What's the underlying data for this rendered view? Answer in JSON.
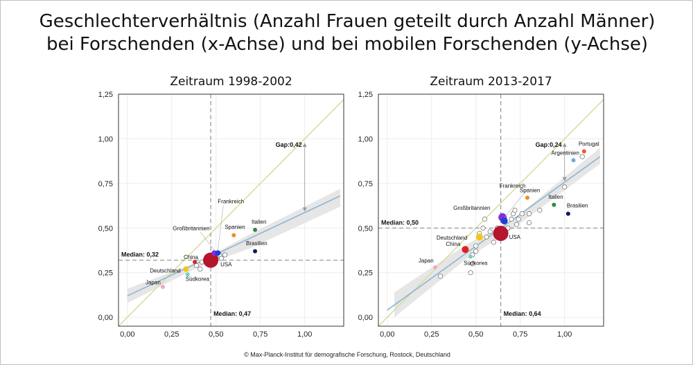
{
  "title_line1": "Geschlechterverhältnis (Anzahl Frauen geteilt durch Anzahl Männer)",
  "title_line2": "bei Forschenden (x-Achse) und bei mobilen Forschenden (y-Achse)",
  "credit": "© Max-Planck-Institut für demografische Forschung, Rostock, Deutschland",
  "colors": {
    "identity_line": "#d6dfa4",
    "fit_line": "#8fb4d2",
    "ci_band": "#e6e6e6",
    "median_line": "#999999",
    "grid": "#ececec",
    "gap_arrow": "#999999"
  },
  "chart_data": [
    {
      "type": "scatter",
      "title": "Zeitraum 1998-2002",
      "xlim": [
        -0.05,
        1.22
      ],
      "ylim": [
        -0.05,
        1.25
      ],
      "xticks": [
        "0,00",
        "0,25",
        "0,50",
        "0,75",
        "1,00"
      ],
      "yticks": [
        "0,00",
        "0,25",
        "0,50",
        "0,75",
        "1,00",
        "1,25"
      ],
      "xtick_values": [
        0,
        0.25,
        0.5,
        0.75,
        1.0
      ],
      "ytick_values": [
        0,
        0.25,
        0.5,
        0.75,
        1.0,
        1.25
      ],
      "median_x": 0.47,
      "median_x_label": "Median: 0,47",
      "median_y": 0.32,
      "median_y_label": "Median: 0,32",
      "gap": {
        "x": 1.0,
        "y_from": 0.97,
        "y_to": 0.6,
        "label": "Gap:0,42"
      },
      "fit": {
        "x0": 0.0,
        "y0": 0.12,
        "x1": 1.2,
        "y1": 0.68
      },
      "ci": {
        "upper": [
          [
            0.0,
            0.16
          ],
          [
            0.4,
            0.31
          ],
          [
            0.7,
            0.47
          ],
          [
            1.2,
            0.72
          ]
        ],
        "lower": [
          [
            0.0,
            0.08
          ],
          [
            0.4,
            0.28
          ],
          [
            0.7,
            0.39
          ],
          [
            1.2,
            0.62
          ]
        ]
      },
      "highlighted": [
        {
          "name": "Japan",
          "x": 0.2,
          "y": 0.17,
          "color": "#f4a7c7",
          "r": 3
        },
        {
          "name": "Deutschland",
          "x": 0.33,
          "y": 0.27,
          "color": "#f5c518",
          "r": 4
        },
        {
          "name": "Südkorea",
          "x": 0.34,
          "y": 0.24,
          "color": "#74d3c8",
          "r": 3
        },
        {
          "name": "China",
          "x": 0.38,
          "y": 0.31,
          "color": "#e0201e",
          "r": 3
        },
        {
          "name": "Großbritannien",
          "x": 0.49,
          "y": 0.36,
          "color": "#8a2be2",
          "r": 4
        },
        {
          "name": "Frankreich",
          "x": 0.51,
          "y": 0.36,
          "color": "#1f3fd6",
          "r": 4
        },
        {
          "name": "USA",
          "x": 0.47,
          "y": 0.32,
          "color": "#b5152d",
          "r": 11
        },
        {
          "name": "Spanien",
          "x": 0.6,
          "y": 0.46,
          "color": "#f28c1a",
          "r": 3
        },
        {
          "name": "Italien",
          "x": 0.72,
          "y": 0.49,
          "color": "#2e8b3c",
          "r": 3
        },
        {
          "name": "Brasilien",
          "x": 0.72,
          "y": 0.37,
          "color": "#0d1a5c",
          "r": 3
        }
      ],
      "others": [
        [
          0.39,
          0.29
        ],
        [
          0.42,
          0.31
        ],
        [
          0.44,
          0.32
        ],
        [
          0.45,
          0.34
        ],
        [
          0.5,
          0.33
        ],
        [
          0.52,
          0.35
        ],
        [
          0.53,
          0.33
        ],
        [
          0.55,
          0.35
        ],
        [
          0.41,
          0.27
        ]
      ]
    },
    {
      "type": "scatter",
      "title": "Zeitraum 2013-2017",
      "xlim": [
        -0.05,
        1.22
      ],
      "ylim": [
        -0.05,
        1.25
      ],
      "xticks": [
        "0,00",
        "0,25",
        "0,50",
        "0,75",
        "1,00"
      ],
      "yticks": [
        "0,00",
        "0,25",
        "0,50",
        "0,75",
        "1,00",
        "1,25"
      ],
      "xtick_values": [
        0,
        0.25,
        0.5,
        0.75,
        1.0
      ],
      "ytick_values": [
        0,
        0.25,
        0.5,
        0.75,
        1.0,
        1.25
      ],
      "median_x": 0.64,
      "median_x_label": "Median: 0,64",
      "median_y": 0.5,
      "median_y_label": "Median: 0,50",
      "gap": {
        "x": 1.0,
        "y_from": 0.97,
        "y_to": 0.77,
        "label": "Gap:0,24"
      },
      "fit": {
        "x0": 0.0,
        "y0": 0.04,
        "x1": 1.2,
        "y1": 0.9
      },
      "ci": {
        "upper": [
          [
            0.04,
            0.14
          ],
          [
            0.45,
            0.41
          ],
          [
            0.7,
            0.54
          ],
          [
            1.2,
            0.95
          ]
        ],
        "lower": [
          [
            0.04,
            0.0
          ],
          [
            0.45,
            0.33
          ],
          [
            0.7,
            0.49
          ],
          [
            1.2,
            0.86
          ]
        ]
      },
      "highlighted": [
        {
          "name": "Japan",
          "x": 0.27,
          "y": 0.28,
          "color": "#f4a7c7",
          "r": 3
        },
        {
          "name": "Südkorea",
          "x": 0.47,
          "y": 0.34,
          "color": "#74d3c8",
          "r": 3
        },
        {
          "name": "China",
          "x": 0.44,
          "y": 0.38,
          "color": "#e0201e",
          "r": 5
        },
        {
          "name": "Deutschland",
          "x": 0.52,
          "y": 0.45,
          "color": "#f5c518",
          "r": 5
        },
        {
          "name": "Großbritannien",
          "x": 0.65,
          "y": 0.56,
          "color": "#8a2be2",
          "r": 6
        },
        {
          "name": "Frankreich",
          "x": 0.66,
          "y": 0.54,
          "color": "#1f3fd6",
          "r": 5
        },
        {
          "name": "USA",
          "x": 0.64,
          "y": 0.47,
          "color": "#b5152d",
          "r": 11
        },
        {
          "name": "Spanien",
          "x": 0.79,
          "y": 0.67,
          "color": "#f28c1a",
          "r": 3
        },
        {
          "name": "Italien",
          "x": 0.94,
          "y": 0.63,
          "color": "#2e8b3c",
          "r": 3
        },
        {
          "name": "Brasilien",
          "x": 1.02,
          "y": 0.58,
          "color": "#0d1a5c",
          "r": 3
        },
        {
          "name": "Argentinien",
          "x": 1.05,
          "y": 0.88,
          "color": "#6fa8dc",
          "r": 3
        },
        {
          "name": "Portugal",
          "x": 1.11,
          "y": 0.93,
          "color": "#f05a28",
          "r": 3
        }
      ],
      "others": [
        [
          0.3,
          0.23
        ],
        [
          0.47,
          0.25
        ],
        [
          0.48,
          0.3
        ],
        [
          0.48,
          0.35
        ],
        [
          0.5,
          0.37
        ],
        [
          0.5,
          0.4
        ],
        [
          0.52,
          0.47
        ],
        [
          0.54,
          0.5
        ],
        [
          0.56,
          0.45
        ],
        [
          0.58,
          0.48
        ],
        [
          0.6,
          0.42
        ],
        [
          0.62,
          0.5
        ],
        [
          0.68,
          0.5
        ],
        [
          0.7,
          0.55
        ],
        [
          0.71,
          0.58
        ],
        [
          0.73,
          0.52
        ],
        [
          0.74,
          0.55
        ],
        [
          0.76,
          0.58
        ],
        [
          0.8,
          0.58
        ],
        [
          0.8,
          0.53
        ],
        [
          0.86,
          0.6
        ],
        [
          1.0,
          0.73
        ],
        [
          1.1,
          0.9
        ],
        [
          0.72,
          0.6
        ],
        [
          0.55,
          0.55
        ]
      ]
    }
  ]
}
